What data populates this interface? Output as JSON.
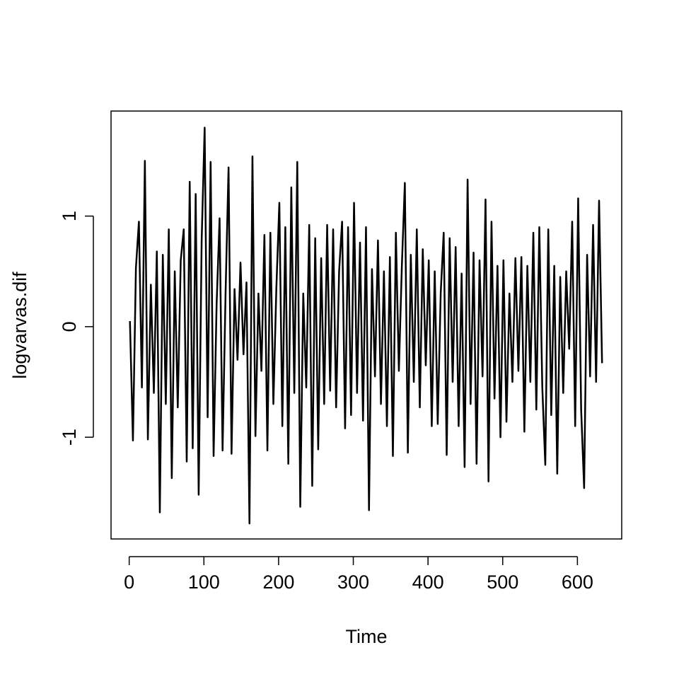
{
  "chart_data": {
    "type": "line",
    "x_label": "Time",
    "y_label": "logvarvas.dif",
    "color": "#000000",
    "box": true,
    "x": [
      1,
      5,
      9,
      13,
      17,
      21,
      25,
      29,
      33,
      37,
      41,
      45,
      49,
      53,
      57,
      61,
      65,
      69,
      73,
      77,
      81,
      85,
      89,
      93,
      97,
      101,
      105,
      109,
      113,
      117,
      121,
      125,
      129,
      133,
      137,
      141,
      145,
      149,
      153,
      157,
      161,
      165,
      169,
      173,
      177,
      181,
      185,
      189,
      193,
      197,
      201,
      205,
      209,
      213,
      217,
      221,
      225,
      229,
      233,
      237,
      241,
      245,
      249,
      253,
      257,
      261,
      265,
      269,
      273,
      277,
      281,
      285,
      289,
      293,
      297,
      301,
      305,
      309,
      313,
      317,
      321,
      325,
      329,
      333,
      337,
      341,
      345,
      349,
      353,
      357,
      361,
      365,
      369,
      373,
      377,
      381,
      385,
      389,
      393,
      397,
      401,
      405,
      409,
      413,
      417,
      421,
      425,
      429,
      433,
      437,
      441,
      445,
      449,
      453,
      457,
      461,
      465,
      469,
      473,
      477,
      481,
      485,
      489,
      493,
      497,
      501,
      505,
      509,
      513,
      517,
      521,
      525,
      529,
      533,
      537,
      541,
      545,
      549,
      553,
      557,
      561,
      565,
      569,
      573,
      577,
      581,
      585,
      589,
      593,
      597,
      601,
      605,
      609,
      613,
      617,
      621,
      625,
      629,
      633
    ],
    "values": [
      0.05,
      -1.03,
      0.53,
      0.95,
      -0.55,
      1.5,
      -1.02,
      0.38,
      -0.6,
      0.68,
      -1.68,
      0.65,
      -0.7,
      0.88,
      -1.37,
      0.5,
      -0.73,
      0.6,
      0.88,
      -1.22,
      1.31,
      -1.1,
      1.2,
      -1.52,
      0.78,
      1.8,
      -0.82,
      1.49,
      -1.17,
      0.2,
      0.98,
      -1.12,
      0.3,
      1.44,
      -1.15,
      0.34,
      -0.3,
      0.58,
      -0.25,
      0.4,
      -1.78,
      1.54,
      -0.99,
      0.3,
      -0.4,
      0.83,
      -1.12,
      0.85,
      -0.7,
      0.35,
      1.12,
      -0.9,
      0.9,
      -1.24,
      1.26,
      -0.6,
      1.49,
      -1.63,
      0.3,
      -0.55,
      0.92,
      -1.44,
      0.8,
      -1.11,
      0.62,
      -0.7,
      0.92,
      -0.58,
      0.88,
      -0.73,
      0.5,
      0.95,
      -0.92,
      0.9,
      -0.8,
      1.12,
      -0.6,
      0.76,
      -0.85,
      0.9,
      -1.66,
      0.52,
      -0.45,
      0.78,
      -0.7,
      0.5,
      -0.9,
      0.63,
      -1.17,
      0.85,
      -0.4,
      0.55,
      1.3,
      -1.14,
      0.65,
      -0.5,
      0.88,
      -0.73,
      0.7,
      -0.35,
      0.6,
      -0.9,
      0.5,
      -0.88,
      0.3,
      0.85,
      -1.16,
      0.8,
      -0.5,
      0.72,
      -0.9,
      0.48,
      -1.27,
      1.33,
      -0.7,
      0.67,
      -1.24,
      0.6,
      -0.45,
      1.15,
      -1.4,
      0.95,
      -0.65,
      0.55,
      -1.0,
      0.6,
      -0.86,
      0.3,
      -0.5,
      0.62,
      -0.4,
      0.63,
      -0.95,
      0.55,
      -0.5,
      0.85,
      -0.75,
      0.9,
      -0.55,
      -1.25,
      0.88,
      -0.8,
      0.55,
      -1.33,
      0.45,
      -0.6,
      0.5,
      -0.2,
      0.95,
      -0.9,
      1.16,
      -0.75,
      -1.46,
      0.65,
      -0.45,
      0.92,
      -0.5,
      1.14,
      -0.33
    ],
    "xlim": [
      -24.3,
      659.3
    ],
    "ylim": [
      -1.92,
      1.95
    ],
    "xticks": [
      0,
      100,
      200,
      300,
      400,
      500,
      600
    ],
    "yticks": [
      -1,
      0,
      1
    ]
  }
}
